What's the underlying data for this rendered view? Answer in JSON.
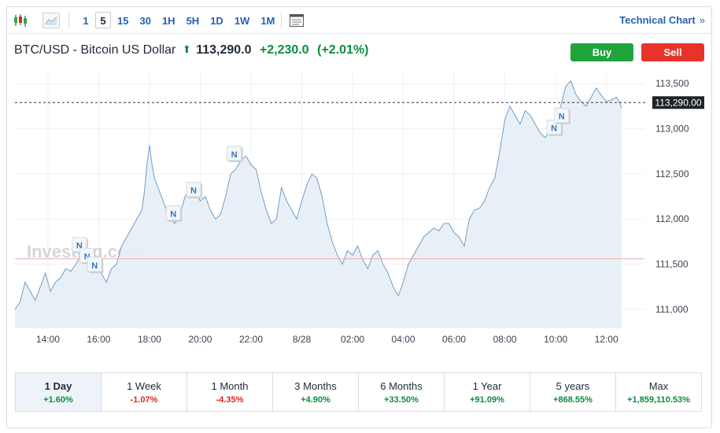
{
  "toolbar": {
    "icons": [
      "candlestick-icon",
      "area-chart-icon",
      "calendar-table-icon"
    ],
    "intervals": [
      "1",
      "5",
      "15",
      "30",
      "1H",
      "5H",
      "1D",
      "1W",
      "1M"
    ],
    "active_interval": "5",
    "technical_label": "Technical Chart",
    "technical_chevron": "»"
  },
  "header": {
    "name": "BTC/USD - Bitcoin US Dollar",
    "arrow": "⬆",
    "price": "113,290.0",
    "change": "+2,230.0",
    "change_pct": "(+2.01%)"
  },
  "buttons": {
    "buy": "Buy",
    "sell": "Sell"
  },
  "watermark": "Investing.com",
  "colors": {
    "line": "#6d9ec8",
    "fill": "#e6eef6",
    "positive": "#0a8d3d",
    "negative": "#e0261d",
    "ref_line": "#f3b3b3",
    "buy": "#1fa53b",
    "sell": "#e8332a"
  },
  "chart_data": {
    "type": "area",
    "xlabels": [
      "14:00",
      "16:00",
      "18:00",
      "20:00",
      "22:00",
      "8/28",
      "02:00",
      "04:00",
      "06:00",
      "08:00",
      "10:00",
      "12:00"
    ],
    "xticks_hours": [
      14,
      16,
      18,
      20,
      22,
      24,
      26,
      28,
      30,
      32,
      34,
      36
    ],
    "xlim_hours": [
      12.7,
      37.5
    ],
    "yticks": [
      111000,
      111500,
      112000,
      112500,
      113000,
      113500
    ],
    "ytick_labels": [
      "111,000",
      "111,500",
      "112,000",
      "112,500",
      "113,000",
      "113,500"
    ],
    "ylim": [
      110790,
      113650
    ],
    "current_value": 113290,
    "current_label": "113,290.00",
    "reference_value": 111560,
    "grid": true,
    "series": [
      {
        "points": [
          [
            12.7,
            111000
          ],
          [
            12.9,
            111080
          ],
          [
            13.1,
            111300
          ],
          [
            13.3,
            111200
          ],
          [
            13.5,
            111100
          ],
          [
            13.7,
            111250
          ],
          [
            13.9,
            111400
          ],
          [
            14.1,
            111200
          ],
          [
            14.3,
            111300
          ],
          [
            14.5,
            111350
          ],
          [
            14.7,
            111450
          ],
          [
            14.9,
            111420
          ],
          [
            15.1,
            111500
          ],
          [
            15.3,
            111600
          ],
          [
            15.5,
            111550
          ],
          [
            15.7,
            111450
          ],
          [
            15.9,
            111500
          ],
          [
            16.1,
            111400
          ],
          [
            16.3,
            111300
          ],
          [
            16.5,
            111450
          ],
          [
            16.7,
            111500
          ],
          [
            16.9,
            111700
          ],
          [
            17.1,
            111800
          ],
          [
            17.3,
            111900
          ],
          [
            17.5,
            112000
          ],
          [
            17.7,
            112100
          ],
          [
            17.8,
            112300
          ],
          [
            17.9,
            112600
          ],
          [
            18.0,
            112820
          ],
          [
            18.1,
            112600
          ],
          [
            18.2,
            112450
          ],
          [
            18.4,
            112300
          ],
          [
            18.6,
            112150
          ],
          [
            18.8,
            112000
          ],
          [
            19.0,
            111950
          ],
          [
            19.2,
            112050
          ],
          [
            19.4,
            112250
          ],
          [
            19.6,
            112350
          ],
          [
            19.8,
            112300
          ],
          [
            20.0,
            112200
          ],
          [
            20.2,
            112250
          ],
          [
            20.4,
            112100
          ],
          [
            20.6,
            112000
          ],
          [
            20.8,
            112050
          ],
          [
            21.0,
            112250
          ],
          [
            21.2,
            112500
          ],
          [
            21.4,
            112550
          ],
          [
            21.6,
            112650
          ],
          [
            21.8,
            112700
          ],
          [
            22.0,
            112600
          ],
          [
            22.2,
            112550
          ],
          [
            22.4,
            112300
          ],
          [
            22.6,
            112100
          ],
          [
            22.8,
            111950
          ],
          [
            23.0,
            112000
          ],
          [
            23.2,
            112350
          ],
          [
            23.4,
            112200
          ],
          [
            23.6,
            112100
          ],
          [
            23.8,
            112000
          ],
          [
            24.0,
            112200
          ],
          [
            24.2,
            112380
          ],
          [
            24.4,
            112500
          ],
          [
            24.6,
            112450
          ],
          [
            24.8,
            112250
          ],
          [
            25.0,
            111950
          ],
          [
            25.2,
            111750
          ],
          [
            25.4,
            111600
          ],
          [
            25.6,
            111500
          ],
          [
            25.8,
            111650
          ],
          [
            26.0,
            111600
          ],
          [
            26.2,
            111700
          ],
          [
            26.4,
            111550
          ],
          [
            26.6,
            111450
          ],
          [
            26.8,
            111600
          ],
          [
            27.0,
            111650
          ],
          [
            27.2,
            111500
          ],
          [
            27.4,
            111400
          ],
          [
            27.6,
            111250
          ],
          [
            27.8,
            111150
          ],
          [
            28.0,
            111300
          ],
          [
            28.2,
            111500
          ],
          [
            28.4,
            111600
          ],
          [
            28.6,
            111700
          ],
          [
            28.8,
            111800
          ],
          [
            29.0,
            111850
          ],
          [
            29.2,
            111900
          ],
          [
            29.4,
            111870
          ],
          [
            29.6,
            111950
          ],
          [
            29.8,
            111950
          ],
          [
            30.0,
            111850
          ],
          [
            30.2,
            111800
          ],
          [
            30.4,
            111700
          ],
          [
            30.6,
            112000
          ],
          [
            30.8,
            112100
          ],
          [
            31.0,
            112120
          ],
          [
            31.2,
            112200
          ],
          [
            31.4,
            112350
          ],
          [
            31.6,
            112450
          ],
          [
            31.8,
            112750
          ],
          [
            32.0,
            113100
          ],
          [
            32.2,
            113250
          ],
          [
            32.4,
            113150
          ],
          [
            32.6,
            113050
          ],
          [
            32.8,
            113200
          ],
          [
            33.0,
            113150
          ],
          [
            33.2,
            113050
          ],
          [
            33.4,
            112950
          ],
          [
            33.6,
            112900
          ],
          [
            33.8,
            113000
          ],
          [
            34.0,
            113100
          ],
          [
            34.2,
            113250
          ],
          [
            34.4,
            113470
          ],
          [
            34.6,
            113530
          ],
          [
            34.8,
            113380
          ],
          [
            35.0,
            113300
          ],
          [
            35.2,
            113250
          ],
          [
            35.4,
            113350
          ],
          [
            35.6,
            113450
          ],
          [
            35.8,
            113370
          ],
          [
            36.0,
            113300
          ],
          [
            36.2,
            113320
          ],
          [
            36.4,
            113350
          ],
          [
            36.5,
            113300
          ],
          [
            36.6,
            113230
          ]
        ]
      }
    ],
    "news_markers": [
      {
        "label": "N",
        "x": 15.3,
        "y": 111700
      },
      {
        "label": "N",
        "x": 15.6,
        "y": 111580
      },
      {
        "label": "N",
        "x": 15.9,
        "y": 111480
      },
      {
        "label": "N",
        "x": 19.0,
        "y": 112050
      },
      {
        "label": "N",
        "x": 19.8,
        "y": 112310
      },
      {
        "label": "N",
        "x": 21.4,
        "y": 112710
      },
      {
        "label": "N",
        "x": 34.0,
        "y": 113000
      },
      {
        "label": "N",
        "x": 34.3,
        "y": 113130
      }
    ]
  },
  "ranges": [
    {
      "label": "1 Day",
      "change": "+1.60%",
      "dir": "pos"
    },
    {
      "label": "1 Week",
      "change": "-1.07%",
      "dir": "neg"
    },
    {
      "label": "1 Month",
      "change": "-4.35%",
      "dir": "neg"
    },
    {
      "label": "3 Months",
      "change": "+4.90%",
      "dir": "pos"
    },
    {
      "label": "6 Months",
      "change": "+33.50%",
      "dir": "pos"
    },
    {
      "label": "1 Year",
      "change": "+91.09%",
      "dir": "pos"
    },
    {
      "label": "5 years",
      "change": "+868.55%",
      "dir": "pos"
    },
    {
      "label": "Max",
      "change": "+1,859,110.53%",
      "dir": "pos"
    }
  ],
  "active_range": "1 Day"
}
